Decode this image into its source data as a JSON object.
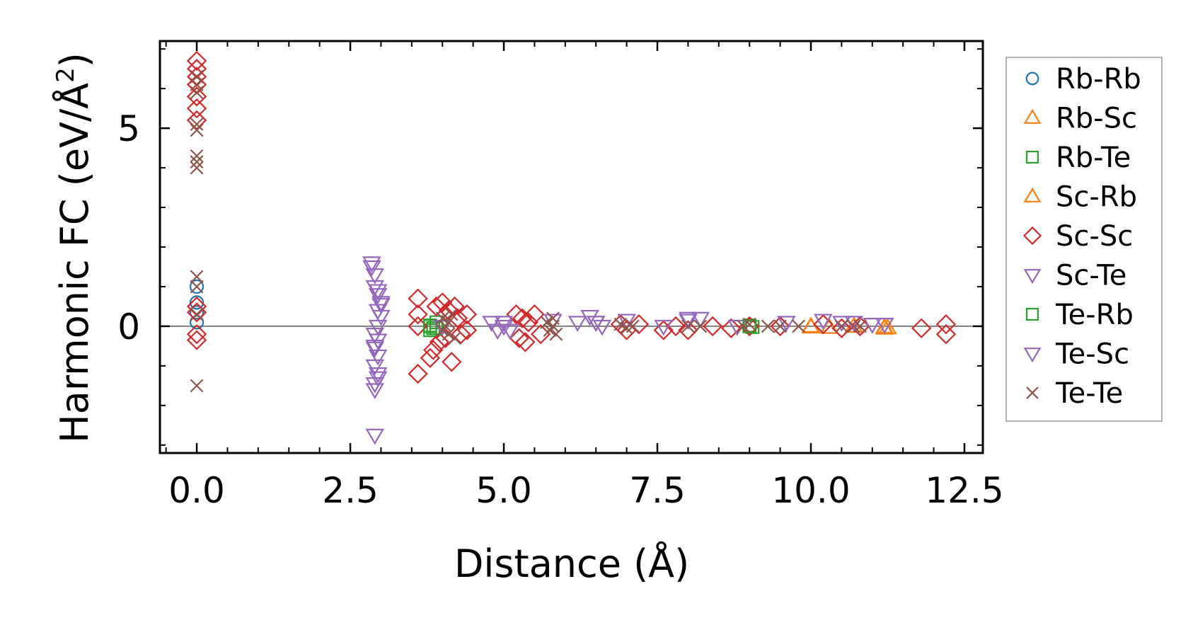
{
  "chart_data": {
    "type": "scatter",
    "title": "",
    "xlabel": "Distance (Å)",
    "ylabel_main": "Harmonic FC (eV/Å",
    "ylabel_sup": "2",
    "ylabel_close": ")",
    "xlim": [
      -0.6,
      12.8
    ],
    "ylim": [
      -3.2,
      7.2
    ],
    "x_ticks": [
      0.0,
      2.5,
      5.0,
      7.5,
      10.0,
      12.5
    ],
    "x_tick_labels": [
      "0.0",
      "2.5",
      "5.0",
      "7.5",
      "10.0",
      "12.5"
    ],
    "y_ticks": [
      0,
      5
    ],
    "y_tick_labels": [
      "0",
      "5"
    ],
    "reference_line_y": 0,
    "legend_position": "right-outside",
    "series": [
      {
        "name": "Rb-Rb",
        "marker": "circle",
        "color": "#1f77b4",
        "points": [
          [
            0,
            1.0
          ],
          [
            0,
            0.6
          ],
          [
            0,
            0.35
          ],
          [
            0,
            0.1
          ]
        ]
      },
      {
        "name": "Rb-Sc",
        "marker": "triangle-up",
        "color": "#ff7f0e",
        "points": [
          [
            10.0,
            -0.02
          ],
          [
            10.3,
            -0.03
          ],
          [
            10.7,
            0.0
          ],
          [
            11.2,
            -0.05
          ],
          [
            11.25,
            -0.04
          ]
        ]
      },
      {
        "name": "Rb-Te",
        "marker": "square",
        "color": "#2ca02c",
        "points": [
          [
            3.8,
            0.02
          ],
          [
            3.85,
            -0.05
          ],
          [
            3.9,
            0.1
          ],
          [
            3.8,
            -0.1
          ],
          [
            9.0,
            0.02
          ],
          [
            9.05,
            -0.02
          ]
        ]
      },
      {
        "name": "Sc-Rb",
        "marker": "triangle-up",
        "color": "#ff7f0e",
        "points": [
          [
            10.0,
            0.0
          ],
          [
            11.2,
            -0.02
          ]
        ]
      },
      {
        "name": "Sc-Sc",
        "marker": "diamond",
        "color": "#d62728",
        "points": [
          [
            0,
            6.7
          ],
          [
            0,
            6.5
          ],
          [
            0,
            6.3
          ],
          [
            0,
            6.1
          ],
          [
            0,
            5.8
          ],
          [
            0,
            5.5
          ],
          [
            0,
            5.2
          ],
          [
            0,
            0.5
          ],
          [
            0,
            0.35
          ],
          [
            0,
            -0.2
          ],
          [
            0,
            -0.35
          ],
          [
            3.6,
            0.7
          ],
          [
            3.6,
            0.3
          ],
          [
            3.6,
            0.0
          ],
          [
            3.6,
            -1.2
          ],
          [
            3.8,
            -0.8
          ],
          [
            3.85,
            -0.6
          ],
          [
            3.9,
            0.5
          ],
          [
            3.95,
            -0.4
          ],
          [
            4.0,
            0.6
          ],
          [
            4.05,
            -0.3
          ],
          [
            4.1,
            0.4
          ],
          [
            4.15,
            -0.9
          ],
          [
            4.2,
            0.5
          ],
          [
            4.25,
            0.2
          ],
          [
            4.3,
            -0.2
          ],
          [
            4.4,
            0.3
          ],
          [
            4.4,
            -0.1
          ],
          [
            5.2,
            0.3
          ],
          [
            5.25,
            -0.3
          ],
          [
            5.3,
            0.2
          ],
          [
            5.35,
            -0.4
          ],
          [
            5.4,
            0.1
          ],
          [
            5.5,
            0.3
          ],
          [
            5.6,
            -0.2
          ],
          [
            6.9,
            0.05
          ],
          [
            7.0,
            -0.1
          ],
          [
            7.2,
            0.05
          ],
          [
            7.6,
            -0.1
          ],
          [
            7.8,
            0.0
          ],
          [
            8.0,
            -0.1
          ],
          [
            8.4,
            0.0
          ],
          [
            8.7,
            -0.05
          ],
          [
            9.0,
            0.0
          ],
          [
            9.5,
            0.0
          ],
          [
            10.2,
            0.05
          ],
          [
            10.5,
            -0.05
          ],
          [
            10.8,
            0.0
          ],
          [
            11.8,
            -0.05
          ],
          [
            12.2,
            0.05
          ],
          [
            12.2,
            -0.2
          ]
        ]
      },
      {
        "name": "Sc-Te",
        "marker": "triangle-down",
        "color": "#9467bd",
        "points": [
          [
            2.85,
            1.6
          ],
          [
            2.9,
            1.3
          ],
          [
            2.9,
            1.0
          ],
          [
            2.95,
            0.8
          ],
          [
            3.0,
            0.55
          ],
          [
            2.95,
            0.4
          ],
          [
            3.0,
            0.25
          ],
          [
            2.95,
            0.0
          ],
          [
            2.9,
            -0.2
          ],
          [
            2.95,
            -0.35
          ],
          [
            2.9,
            -0.55
          ],
          [
            2.95,
            -0.75
          ],
          [
            2.9,
            -1.0
          ],
          [
            2.95,
            -1.2
          ],
          [
            2.9,
            -1.45
          ],
          [
            2.9,
            -1.6
          ],
          [
            4.8,
            0.1
          ],
          [
            4.9,
            -0.1
          ],
          [
            5.0,
            0.1
          ],
          [
            5.1,
            -0.1
          ],
          [
            5.8,
            0.15
          ],
          [
            6.2,
            0.1
          ],
          [
            6.4,
            0.25
          ],
          [
            6.5,
            0.1
          ],
          [
            6.6,
            0.0
          ],
          [
            7.0,
            0.15
          ],
          [
            7.6,
            0.0
          ],
          [
            8.0,
            0.15
          ],
          [
            8.2,
            0.2
          ],
          [
            8.8,
            0.0
          ],
          [
            9.6,
            0.1
          ],
          [
            10.2,
            0.15
          ],
          [
            10.5,
            0.1
          ],
          [
            10.7,
            0.1
          ],
          [
            11.0,
            0.05
          ],
          [
            11.2,
            0.05
          ]
        ]
      },
      {
        "name": "Te-Rb",
        "marker": "square",
        "color": "#2ca02c",
        "points": [
          [
            3.8,
            0.0
          ],
          [
            3.9,
            -0.05
          ],
          [
            9.0,
            0.0
          ]
        ]
      },
      {
        "name": "Te-Sc",
        "marker": "triangle-down",
        "color": "#9467bd",
        "points": [
          [
            2.9,
            -2.75
          ],
          [
            2.85,
            1.5
          ],
          [
            2.95,
            0.9
          ],
          [
            3.0,
            0.6
          ],
          [
            2.9,
            -0.5
          ],
          [
            2.95,
            -1.3
          ],
          [
            4.0,
            0.0
          ],
          [
            5.0,
            0.0
          ],
          [
            6.5,
            0.1
          ],
          [
            8.0,
            0.2
          ]
        ]
      },
      {
        "name": "Te-Te",
        "marker": "x",
        "color": "#8c564b",
        "points": [
          [
            0,
            6.3
          ],
          [
            0,
            6.1
          ],
          [
            0,
            5.9
          ],
          [
            0,
            5.1
          ],
          [
            0,
            4.95
          ],
          [
            0,
            4.3
          ],
          [
            0,
            4.15
          ],
          [
            0,
            4.0
          ],
          [
            0,
            1.25
          ],
          [
            0,
            1.0
          ],
          [
            0,
            0.3
          ],
          [
            0,
            -1.5
          ],
          [
            4.0,
            0.2
          ],
          [
            4.05,
            0.0
          ],
          [
            4.1,
            -0.2
          ],
          [
            4.15,
            0.3
          ],
          [
            4.2,
            -0.3
          ],
          [
            4.0,
            -0.1
          ],
          [
            4.1,
            0.1
          ],
          [
            5.7,
            0.1
          ],
          [
            5.75,
            -0.1
          ],
          [
            5.8,
            0.2
          ],
          [
            5.85,
            -0.2
          ],
          [
            5.8,
            0.0
          ],
          [
            6.9,
            0.05
          ],
          [
            7.0,
            -0.05
          ],
          [
            7.1,
            0.0
          ],
          [
            8.0,
            0.0
          ],
          [
            8.2,
            0.0
          ],
          [
            8.9,
            0.0
          ],
          [
            9.0,
            0.05
          ],
          [
            9.3,
            0.0
          ],
          [
            9.5,
            0.0
          ],
          [
            9.8,
            0.0
          ],
          [
            10.5,
            0.0
          ],
          [
            10.7,
            0.0
          ],
          [
            10.8,
            0.0
          ]
        ]
      }
    ]
  }
}
